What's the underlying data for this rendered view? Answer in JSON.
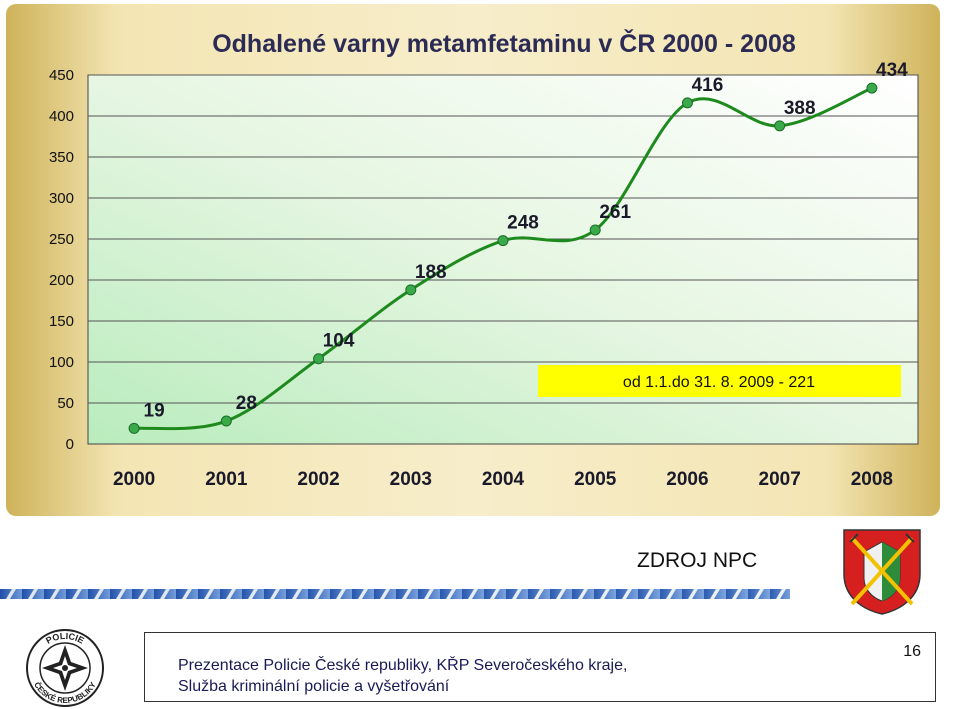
{
  "chart_data": {
    "type": "line",
    "title": "Odhalené varny metamfetaminu v ČR 2000 - 2008",
    "categories": [
      "2000",
      "2001",
      "2002",
      "2003",
      "2004",
      "2005",
      "2006",
      "2007",
      "2008"
    ],
    "series": [
      {
        "values": [
          19,
          28,
          104,
          188,
          248,
          261,
          416,
          388,
          434
        ]
      }
    ],
    "yticks": [
      "0",
      "50",
      "100",
      "150",
      "200",
      "250",
      "300",
      "350",
      "400",
      "450"
    ],
    "ylim": [
      0,
      450
    ],
    "grid": true,
    "annotation": "od 1.1.do 31. 8. 2009 - 221",
    "colors": {
      "line": "#1e8a1e",
      "marker": "#3aa94a",
      "annotation_bg": "#ffff00"
    }
  },
  "source": "ZDROJ NPC",
  "footer": {
    "line1": "Prezentace Policie České republiky, KŘP Severočeského kraje,",
    "line2": "Služba kriminální policie a vyšetřování",
    "page_number": "16"
  },
  "logo": {
    "text": "POLICIE ČESKÉ REPUBLIKY"
  },
  "icons": {
    "emblem": "regional-coat-of-arms-icon",
    "police": "police-star-logo-icon"
  }
}
